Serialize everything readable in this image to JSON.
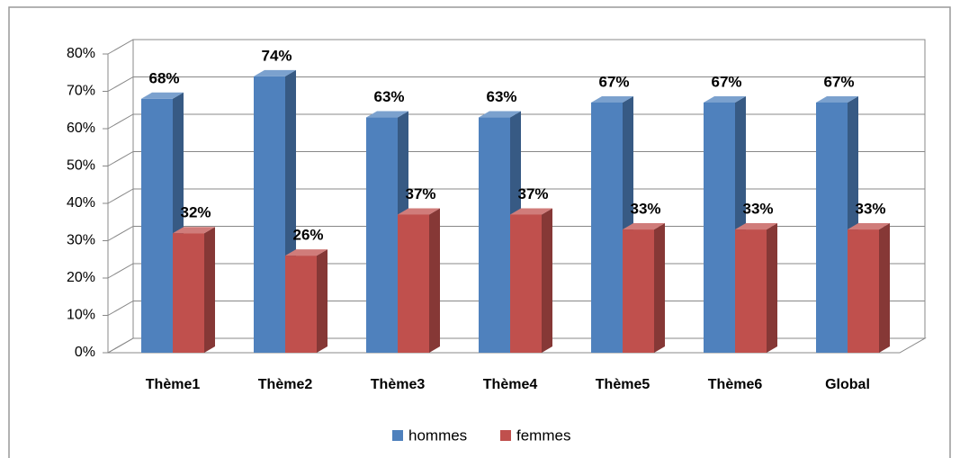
{
  "chart_data": {
    "type": "bar",
    "categories": [
      "Thème1",
      "Thème2",
      "Thème3",
      "Thème4",
      "Thème5",
      "Thème6",
      "Global"
    ],
    "series": [
      {
        "name": "hommes",
        "color": "#4f81bd",
        "values": [
          68,
          74,
          63,
          63,
          67,
          67,
          67
        ],
        "value_labels": [
          "68%",
          "74%",
          "63%",
          "63%",
          "67%",
          "67%",
          "67%"
        ]
      },
      {
        "name": "femmes",
        "color": "#c0504d",
        "values": [
          32,
          26,
          37,
          37,
          33,
          33,
          33
        ],
        "value_labels": [
          "32%",
          "26%",
          "37%",
          "37%",
          "33%",
          "33%",
          "33%"
        ]
      }
    ],
    "ylim": [
      0,
      80
    ],
    "yticks": [
      {
        "value": 0,
        "label": "0%"
      },
      {
        "value": 10,
        "label": "10%"
      },
      {
        "value": 20,
        "label": "20%"
      },
      {
        "value": 30,
        "label": "30%"
      },
      {
        "value": 40,
        "label": "40%"
      },
      {
        "value": 50,
        "label": "50%"
      },
      {
        "value": 60,
        "label": "60%"
      },
      {
        "value": 70,
        "label": "70%"
      },
      {
        "value": 80,
        "label": "80%"
      }
    ],
    "grid": true,
    "legend": "bottom"
  }
}
